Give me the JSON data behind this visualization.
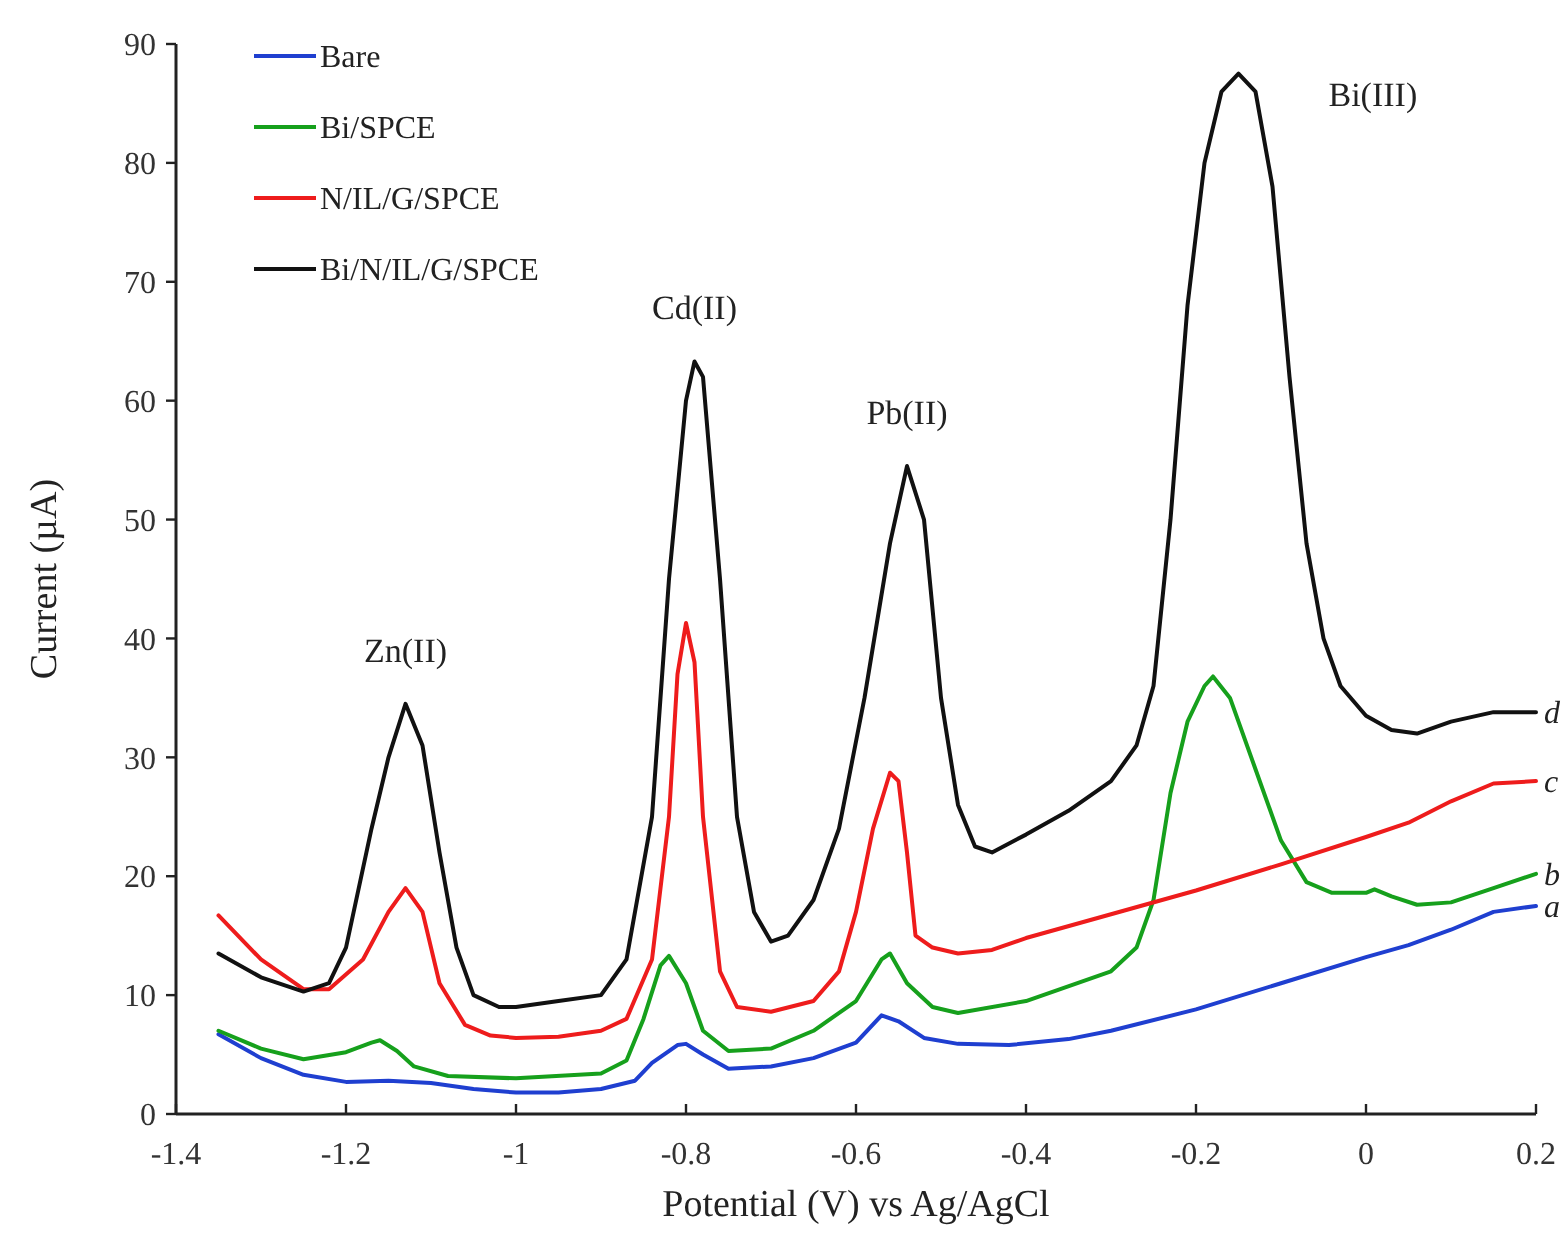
{
  "chart_data": {
    "type": "line",
    "xlabel": "Potential (V) vs Ag/AgCl",
    "ylabel": "Current (µA)",
    "xlim": [
      -1.4,
      0.2
    ],
    "ylim": [
      0,
      90
    ],
    "xticks": [
      -1.4,
      -1.2,
      -1,
      -0.8,
      -0.6,
      -0.4,
      -0.2,
      0,
      0.2
    ],
    "yticks": [
      0,
      10,
      20,
      30,
      40,
      50,
      60,
      70,
      80,
      90
    ],
    "grid": false,
    "legend": "top left",
    "marker": "none",
    "line_style": "solid",
    "series": [
      {
        "name": "Bare",
        "color": "#1f3fd0",
        "x": [
          -1.35,
          -1.3,
          -1.25,
          -1.2,
          -1.15,
          -1.1,
          -1.05,
          -1,
          -0.95,
          -0.9,
          -0.86,
          -0.84,
          -0.81,
          -0.8,
          -0.78,
          -0.75,
          -0.7,
          -0.65,
          -0.6,
          -0.57,
          -0.55,
          -0.52,
          -0.48,
          -0.42,
          -0.35,
          -0.3,
          -0.2,
          -0.1,
          0,
          0.05,
          0.1,
          0.15,
          0.2
        ],
        "values": [
          6.7,
          4.7,
          3.3,
          2.7,
          2.8,
          2.6,
          2.1,
          1.8,
          1.8,
          2.1,
          2.8,
          4.3,
          5.8,
          5.9,
          5,
          3.8,
          4,
          4.7,
          6,
          8.3,
          7.8,
          6.4,
          5.9,
          5.8,
          6.3,
          7,
          8.8,
          11,
          13.2,
          14.2,
          15.5,
          17,
          17.5
        ]
      },
      {
        "name": "Bi/SPCE",
        "color": "#16a01c",
        "x": [
          -1.35,
          -1.3,
          -1.25,
          -1.2,
          -1.17,
          -1.16,
          -1.14,
          -1.12,
          -1.08,
          -1,
          -0.9,
          -0.87,
          -0.85,
          -0.83,
          -0.82,
          -0.8,
          -0.78,
          -0.75,
          -0.7,
          -0.65,
          -0.6,
          -0.57,
          -0.56,
          -0.54,
          -0.51,
          -0.48,
          -0.4,
          -0.3,
          -0.27,
          -0.25,
          -0.23,
          -0.21,
          -0.19,
          -0.18,
          -0.16,
          -0.13,
          -0.1,
          -0.07,
          -0.04,
          0,
          0.01,
          0.03,
          0.06,
          0.1,
          0.15,
          0.2
        ],
        "values": [
          7,
          5.5,
          4.6,
          5.2,
          6,
          6.2,
          5.3,
          4,
          3.2,
          3,
          3.4,
          4.5,
          8,
          12.5,
          13.3,
          11,
          7,
          5.3,
          5.5,
          7,
          9.5,
          13,
          13.5,
          11,
          9,
          8.5,
          9.5,
          12,
          14,
          18,
          27,
          33,
          36,
          36.8,
          35,
          29,
          23,
          19.5,
          18.6,
          18.6,
          18.9,
          18.3,
          17.6,
          17.8,
          19,
          20.2
        ]
      },
      {
        "name": "N/IL/G/SPCE",
        "color": "#ee1c1c",
        "x": [
          -1.35,
          -1.3,
          -1.25,
          -1.22,
          -1.18,
          -1.15,
          -1.13,
          -1.11,
          -1.09,
          -1.06,
          -1.03,
          -1,
          -0.95,
          -0.9,
          -0.87,
          -0.84,
          -0.82,
          -0.81,
          -0.8,
          -0.79,
          -0.78,
          -0.76,
          -0.74,
          -0.7,
          -0.65,
          -0.62,
          -0.6,
          -0.58,
          -0.56,
          -0.55,
          -0.54,
          -0.53,
          -0.51,
          -0.48,
          -0.44,
          -0.4,
          -0.3,
          -0.2,
          -0.1,
          0,
          0.05,
          0.1,
          0.15,
          0.2
        ],
        "values": [
          16.7,
          13,
          10.5,
          10.5,
          13,
          17,
          19,
          17,
          11,
          7.5,
          6.6,
          6.4,
          6.5,
          7,
          8,
          13,
          25,
          37,
          41.3,
          38,
          25,
          12,
          9,
          8.6,
          9.5,
          12,
          17,
          24,
          28.7,
          28,
          22,
          15,
          14,
          13.5,
          13.8,
          14.8,
          16.8,
          18.8,
          21,
          23.3,
          24.5,
          26.3,
          27.8,
          28
        ]
      },
      {
        "name": "Bi/N/IL/G/SPCE",
        "color": "#111111",
        "x": [
          -1.35,
          -1.3,
          -1.25,
          -1.22,
          -1.2,
          -1.17,
          -1.15,
          -1.13,
          -1.11,
          -1.09,
          -1.07,
          -1.05,
          -1.02,
          -1,
          -0.95,
          -0.9,
          -0.87,
          -0.84,
          -0.82,
          -0.8,
          -0.79,
          -0.78,
          -0.76,
          -0.74,
          -0.72,
          -0.7,
          -0.68,
          -0.65,
          -0.62,
          -0.59,
          -0.56,
          -0.54,
          -0.52,
          -0.5,
          -0.48,
          -0.46,
          -0.44,
          -0.4,
          -0.35,
          -0.3,
          -0.27,
          -0.25,
          -0.23,
          -0.21,
          -0.19,
          -0.17,
          -0.15,
          -0.13,
          -0.11,
          -0.09,
          -0.07,
          -0.05,
          -0.03,
          0,
          0.03,
          0.06,
          0.1,
          0.15,
          0.2
        ],
        "values": [
          13.5,
          11.5,
          10.3,
          11,
          14,
          24,
          30,
          34.5,
          31,
          22,
          14,
          10,
          9,
          9,
          9.5,
          10,
          13,
          25,
          45,
          60,
          63.3,
          62,
          45,
          25,
          17,
          14.5,
          15,
          18,
          24,
          35,
          48,
          54.5,
          50,
          35,
          26,
          22.5,
          22,
          23.5,
          25.5,
          28,
          31,
          36,
          50,
          68,
          80,
          86,
          87.5,
          86,
          78,
          62,
          48,
          40,
          36,
          33.5,
          32.3,
          32,
          33,
          33.8,
          33.8
        ]
      }
    ],
    "annotations": [
      {
        "text": "Zn(II)",
        "x": -1.13,
        "y": 34.5
      },
      {
        "text": "Cd(II)",
        "x": -0.79,
        "y": 63.3
      },
      {
        "text": "Pb(II)",
        "x": -0.54,
        "y": 54.5
      },
      {
        "text": "Bi(III)",
        "x": -0.15,
        "y": 87.5
      },
      {
        "text": "a",
        "x": 0.2,
        "y": 17.5
      },
      {
        "text": "b",
        "x": 0.2,
        "y": 20.2
      },
      {
        "text": "c",
        "x": 0.2,
        "y": 28
      },
      {
        "text": "d",
        "x": 0.2,
        "y": 33.8
      }
    ]
  }
}
